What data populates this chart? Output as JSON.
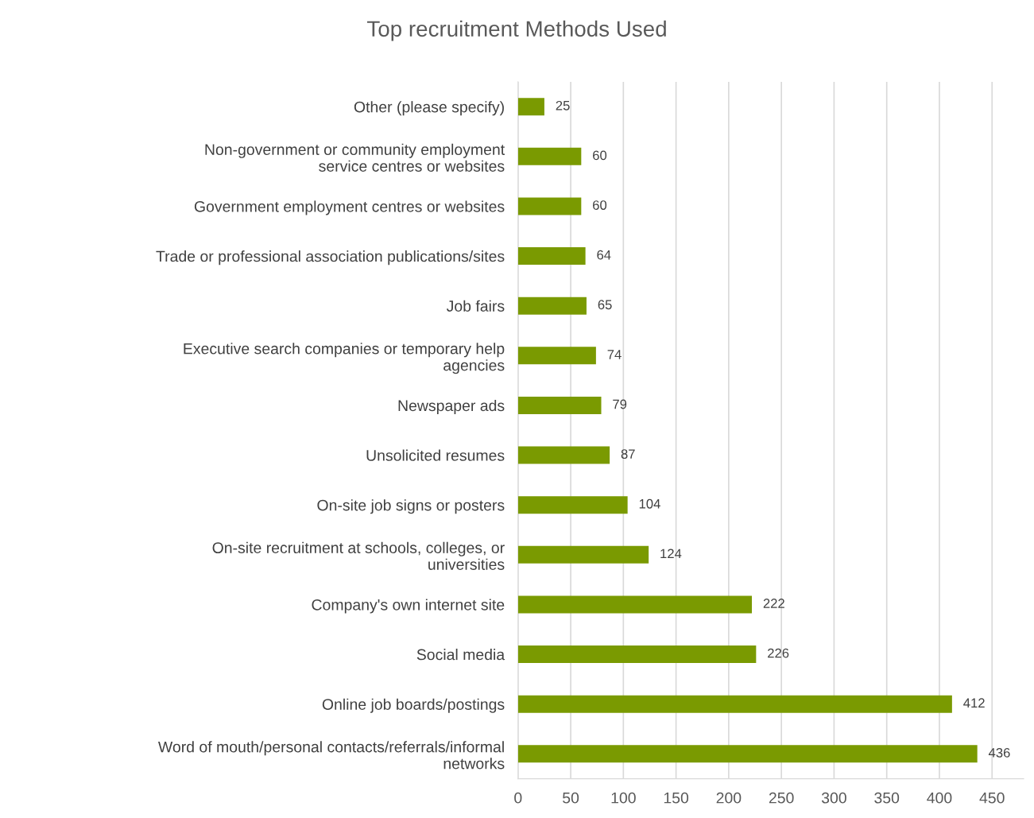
{
  "chart_data": {
    "type": "bar",
    "orientation": "horizontal",
    "title": "Top recruitment Methods Used",
    "categories": [
      "Other (please specify)",
      "Non-government or community employment\nservice centres or websites",
      "Government employment centres or websites",
      "Trade or professional association publications/sites",
      "Job fairs",
      "Executive search companies or temporary help\nagencies",
      "Newspaper ads",
      "Unsolicited resumes",
      "On-site job signs or posters",
      "On-site recruitment at schools, colleges, or\nuniversities",
      "Company's own internet site",
      "Social media",
      "Online job boards/postings",
      "Word of mouth/personal contacts/referrals/informal\nnetworks"
    ],
    "values": [
      25,
      60,
      60,
      64,
      65,
      74,
      79,
      87,
      104,
      124,
      222,
      226,
      412,
      436
    ],
    "color": "#7a9a01",
    "xlim": [
      0,
      480
    ],
    "xticks": [
      0,
      50,
      100,
      150,
      200,
      250,
      300,
      350,
      400,
      450
    ],
    "grid": "x",
    "data_labels": true,
    "legend": false
  }
}
